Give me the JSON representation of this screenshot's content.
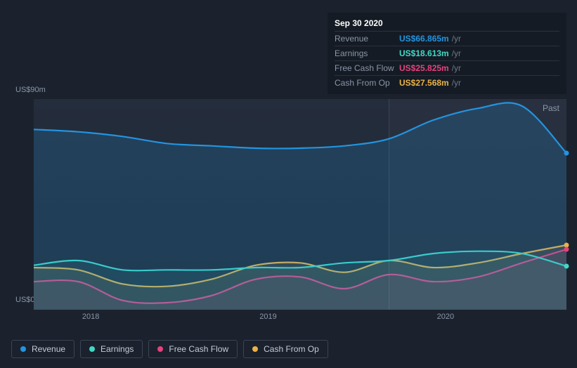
{
  "background_color": "#1b222d",
  "tooltip": {
    "date": "Sep 30 2020",
    "rows": [
      {
        "label": "Revenue",
        "value": "US$66.865m",
        "unit": "/yr",
        "color": "#2394df"
      },
      {
        "label": "Earnings",
        "value": "US$18.613m",
        "unit": "/yr",
        "color": "#3fd9c5"
      },
      {
        "label": "Free Cash Flow",
        "value": "US$25.825m",
        "unit": "/yr",
        "color": "#e8417f"
      },
      {
        "label": "Cash From Op",
        "value": "US$27.568m",
        "unit": "/yr",
        "color": "#eab247"
      }
    ]
  },
  "chart": {
    "type": "area",
    "period_label": "Past",
    "ylabel_top": "US$90m",
    "ylabel_bottom": "US$0",
    "ylim": [
      0,
      90
    ],
    "x_count": 13,
    "x_ticks": [
      {
        "pos": 0.107,
        "label": "2018"
      },
      {
        "pos": 0.44,
        "label": "2019"
      },
      {
        "pos": 0.773,
        "label": "2020"
      }
    ],
    "highlight_from": 0.666,
    "highlight_to": 1.0,
    "marker_x": 0.666,
    "grid_color": "#2a3240",
    "series": [
      {
        "key": "cash_from_op",
        "label": "Cash From Op",
        "color": "#eab247",
        "fill": "rgba(234,178,71,0.12)",
        "values": [
          18,
          17,
          11,
          10,
          13,
          19,
          20,
          16,
          21,
          18,
          20,
          24,
          27.6
        ],
        "end_dot": true
      },
      {
        "key": "free_cash_flow",
        "label": "Free Cash Flow",
        "color": "#e8417f",
        "fill": "rgba(232,65,127,0.10)",
        "values": [
          12,
          12,
          4,
          3,
          6,
          13,
          14,
          9,
          15,
          12,
          14,
          20,
          25.8
        ],
        "end_dot": true
      },
      {
        "key": "earnings",
        "label": "Earnings",
        "color": "#3fd9c5",
        "fill": "rgba(63,217,197,0.10)",
        "values": [
          19,
          21,
          17,
          17,
          17,
          18,
          18,
          20,
          21,
          24,
          25,
          24,
          18.6
        ],
        "end_dot": true
      },
      {
        "key": "revenue",
        "label": "Revenue",
        "color": "#2394df",
        "fill": "rgba(35,148,223,0.20)",
        "values": [
          77,
          76,
          74,
          71,
          70,
          69,
          69,
          70,
          73,
          81,
          86,
          87,
          66.9
        ],
        "end_dot": true
      }
    ],
    "legend_order": [
      "revenue",
      "earnings",
      "free_cash_flow",
      "cash_from_op"
    ]
  }
}
